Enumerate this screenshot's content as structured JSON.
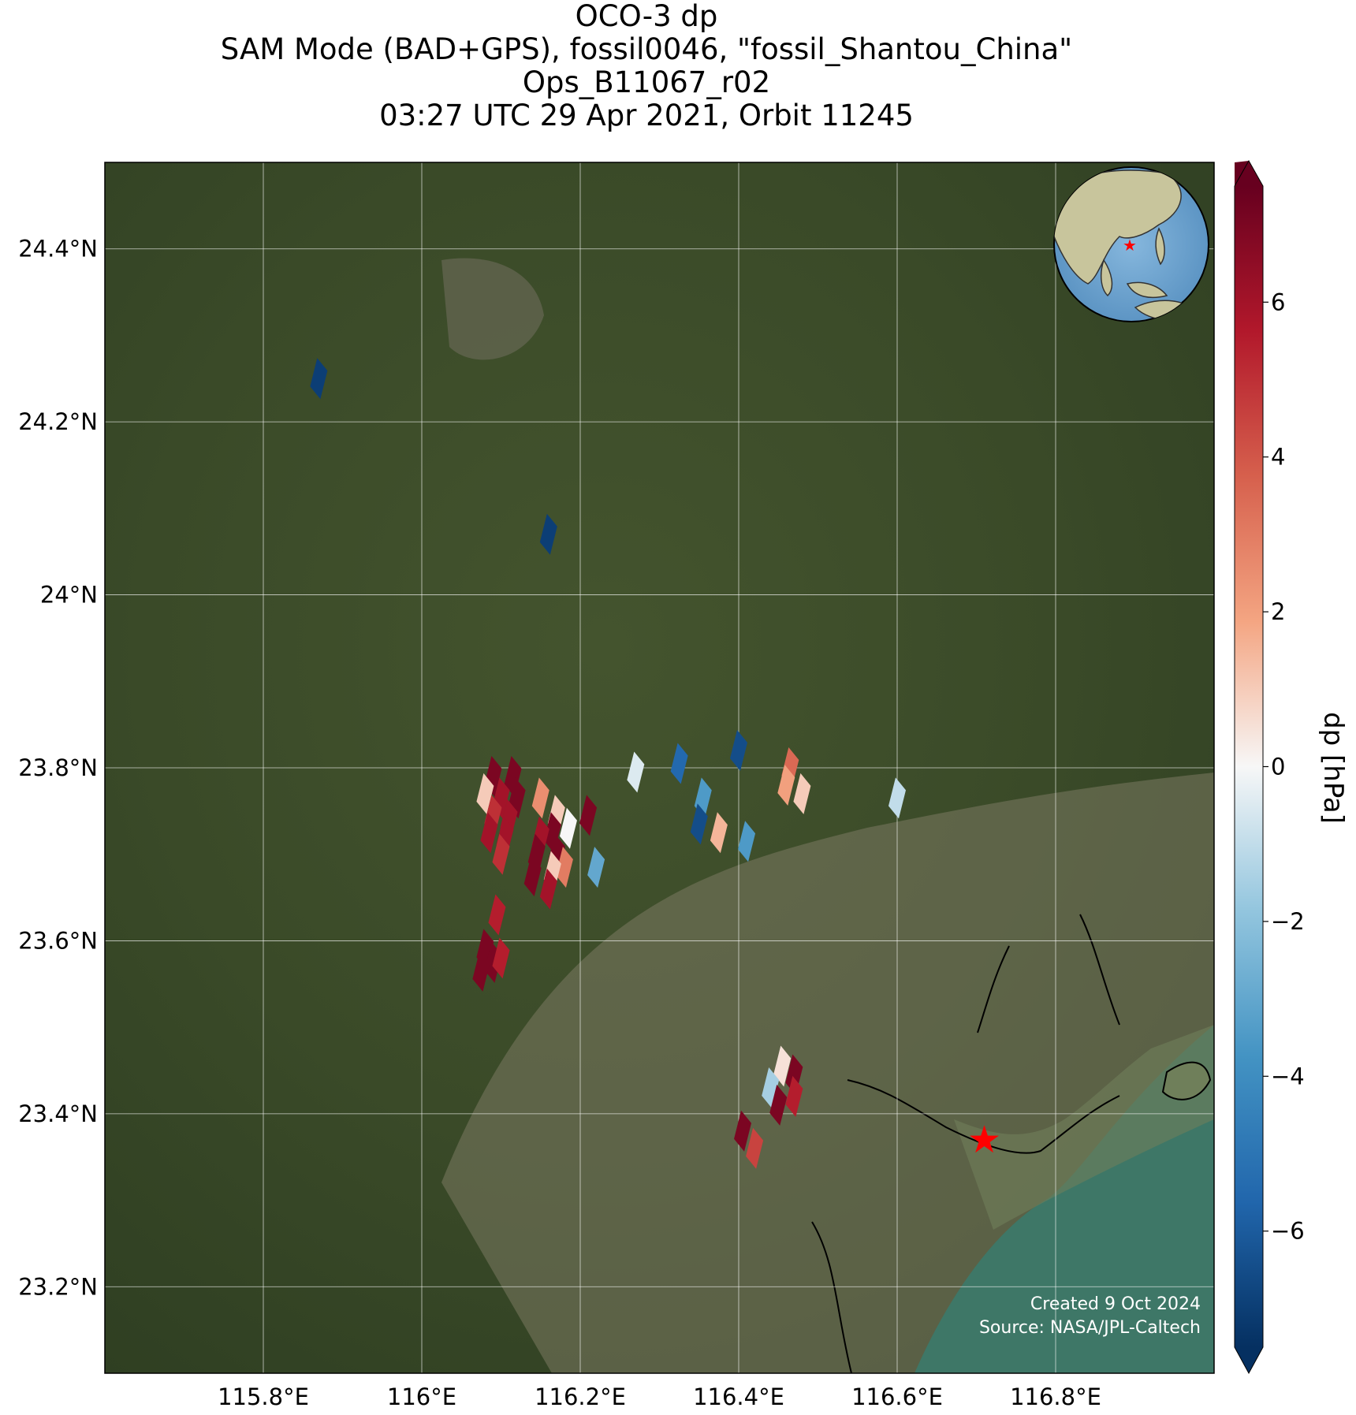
{
  "title": {
    "line1": "OCO-3 dp",
    "line2": "SAM Mode (BAD+GPS), fossil0046, \"fossil_Shantou_China\"",
    "line3": "Ops_B11067_r02",
    "line4": "03:27 UTC 29 Apr 2021, Orbit 11245"
  },
  "map": {
    "extent": {
      "lon_min": 115.6,
      "lon_max": 117.0,
      "lat_min": 23.1,
      "lat_max": 24.5
    },
    "background": "satellite-imagery",
    "lon_ticks": [
      {
        "value": 115.8,
        "label": "115.8°E"
      },
      {
        "value": 116.0,
        "label": "116°E"
      },
      {
        "value": 116.2,
        "label": "116.2°E"
      },
      {
        "value": 116.4,
        "label": "116.4°E"
      },
      {
        "value": 116.6,
        "label": "116.6°E"
      },
      {
        "value": 116.8,
        "label": "116.8°E"
      }
    ],
    "lat_ticks": [
      {
        "value": 24.4,
        "label": "24.4°N"
      },
      {
        "value": 24.2,
        "label": "24.2°N"
      },
      {
        "value": 24.0,
        "label": "24°N"
      },
      {
        "value": 23.8,
        "label": "23.8°N"
      },
      {
        "value": 23.6,
        "label": "23.6°N"
      },
      {
        "value": 23.4,
        "label": "23.4°N"
      },
      {
        "value": 23.2,
        "label": "23.2°N"
      }
    ],
    "grid": true,
    "target": {
      "name": "fossil_Shantou_China",
      "lon": 116.71,
      "lat": 23.37,
      "marker": "red-star"
    },
    "inset": {
      "type": "globe",
      "placement": "top-right",
      "marker": "red-star"
    }
  },
  "chart_data": {
    "type": "scatter",
    "variable": "dp",
    "units": "hPa",
    "colorbar_label": "dp [hPa]",
    "vmin": -7.5,
    "vmax": 7.5,
    "colormap": "RdBu_r",
    "colorbar_ticks": [
      {
        "value": 6,
        "label": "6"
      },
      {
        "value": 4,
        "label": "4"
      },
      {
        "value": 2,
        "label": "2"
      },
      {
        "value": 0,
        "label": "0"
      },
      {
        "value": -2,
        "label": "−2"
      },
      {
        "value": -4,
        "label": "−4"
      },
      {
        "value": -6,
        "label": "−6"
      }
    ],
    "soundings": [
      {
        "lon": 115.87,
        "lat": 24.25,
        "dp": -7.0
      },
      {
        "lon": 116.16,
        "lat": 24.07,
        "dp": -7.0
      },
      {
        "lon": 116.09,
        "lat": 23.79,
        "dp": 7.0
      },
      {
        "lon": 116.115,
        "lat": 23.79,
        "dp": 7.0
      },
      {
        "lon": 116.08,
        "lat": 23.77,
        "dp": 1.0
      },
      {
        "lon": 116.1,
        "lat": 23.765,
        "dp": 6.0
      },
      {
        "lon": 116.12,
        "lat": 23.765,
        "dp": 7.0
      },
      {
        "lon": 116.09,
        "lat": 23.745,
        "dp": 5.0
      },
      {
        "lon": 116.11,
        "lat": 23.74,
        "dp": 6.0
      },
      {
        "lon": 116.085,
        "lat": 23.725,
        "dp": 6.0
      },
      {
        "lon": 116.105,
        "lat": 23.72,
        "dp": 6.0
      },
      {
        "lon": 116.1,
        "lat": 23.7,
        "dp": 5.0
      },
      {
        "lon": 116.15,
        "lat": 23.765,
        "dp": 2.5
      },
      {
        "lon": 116.17,
        "lat": 23.745,
        "dp": 1.0
      },
      {
        "lon": 116.185,
        "lat": 23.73,
        "dp": 0.0
      },
      {
        "lon": 116.165,
        "lat": 23.725,
        "dp": 7.0
      },
      {
        "lon": 116.15,
        "lat": 23.72,
        "dp": 6.0
      },
      {
        "lon": 116.17,
        "lat": 23.7,
        "dp": 7.0
      },
      {
        "lon": 116.145,
        "lat": 23.7,
        "dp": 7.0
      },
      {
        "lon": 116.18,
        "lat": 23.685,
        "dp": 3.0
      },
      {
        "lon": 116.165,
        "lat": 23.68,
        "dp": 1.0
      },
      {
        "lon": 116.14,
        "lat": 23.675,
        "dp": 7.0
      },
      {
        "lon": 116.16,
        "lat": 23.66,
        "dp": 6.0
      },
      {
        "lon": 116.21,
        "lat": 23.745,
        "dp": 7.0
      },
      {
        "lon": 116.22,
        "lat": 23.685,
        "dp": -3.0
      },
      {
        "lon": 116.27,
        "lat": 23.795,
        "dp": -0.5
      },
      {
        "lon": 116.325,
        "lat": 23.805,
        "dp": -5.5
      },
      {
        "lon": 116.4,
        "lat": 23.82,
        "dp": -6.5
      },
      {
        "lon": 116.355,
        "lat": 23.765,
        "dp": -3.5
      },
      {
        "lon": 116.35,
        "lat": 23.735,
        "dp": -6.5
      },
      {
        "lon": 116.375,
        "lat": 23.725,
        "dp": 1.5
      },
      {
        "lon": 116.41,
        "lat": 23.715,
        "dp": -3.5
      },
      {
        "lon": 116.465,
        "lat": 23.8,
        "dp": 3.5
      },
      {
        "lon": 116.46,
        "lat": 23.78,
        "dp": 2.0
      },
      {
        "lon": 116.48,
        "lat": 23.77,
        "dp": 1.0
      },
      {
        "lon": 116.6,
        "lat": 23.765,
        "dp": -1.0
      },
      {
        "lon": 116.095,
        "lat": 23.63,
        "dp": 5.5
      },
      {
        "lon": 116.08,
        "lat": 23.59,
        "dp": 7.0
      },
      {
        "lon": 116.09,
        "lat": 23.575,
        "dp": 7.0
      },
      {
        "lon": 116.075,
        "lat": 23.565,
        "dp": 7.0
      },
      {
        "lon": 116.1,
        "lat": 23.58,
        "dp": 5.5
      },
      {
        "lon": 116.455,
        "lat": 23.455,
        "dp": 0.5
      },
      {
        "lon": 116.47,
        "lat": 23.445,
        "dp": 7.0
      },
      {
        "lon": 116.44,
        "lat": 23.43,
        "dp": -1.5
      },
      {
        "lon": 116.47,
        "lat": 23.42,
        "dp": 5.5
      },
      {
        "lon": 116.45,
        "lat": 23.41,
        "dp": 7.0
      },
      {
        "lon": 116.405,
        "lat": 23.38,
        "dp": 7.0
      },
      {
        "lon": 116.42,
        "lat": 23.36,
        "dp": 4.5
      }
    ]
  },
  "credits": {
    "created": "Created 9 Oct 2024",
    "source": "Source: NASA/JPL-Caltech"
  }
}
